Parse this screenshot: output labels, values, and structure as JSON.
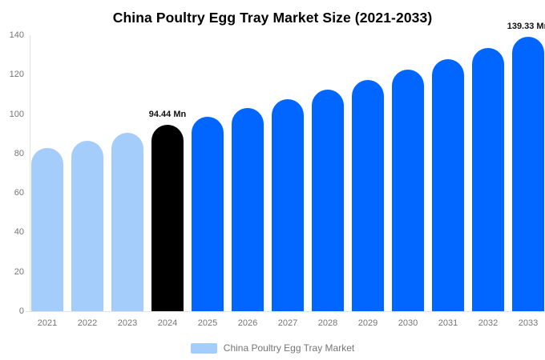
{
  "title": "China Poultry Egg Tray Market Size (2021-2033)",
  "legend": {
    "label": "China Poultry Egg Tray Market",
    "swatch_color": "#a5cdfb"
  },
  "colors": {
    "past_bar": "#a5cdfb",
    "current_bar": "#000000",
    "forecast_bar": "#0066ff",
    "axis_line": "#e3e3e3",
    "tick_text": "#757575",
    "value_text": "#111111"
  },
  "chart_data": {
    "type": "bar",
    "title": "China Poultry Egg Tray Market Size (2021-2033)",
    "xlabel": "",
    "ylabel": "",
    "categories": [
      "2021",
      "2022",
      "2023",
      "2024",
      "2025",
      "2026",
      "2027",
      "2028",
      "2029",
      "2030",
      "2031",
      "2032",
      "2033"
    ],
    "values": [
      82.95,
      86.62,
      90.44,
      94.44,
      98.61,
      102.97,
      107.52,
      112.27,
      117.23,
      122.41,
      127.82,
      133.47,
      139.33
    ],
    "color_roles": [
      "past",
      "past",
      "past",
      "current",
      "forecast",
      "forecast",
      "forecast",
      "forecast",
      "forecast",
      "forecast",
      "forecast",
      "forecast",
      "forecast"
    ],
    "annotations": [
      {
        "index": 3,
        "text": "94.44 Mn"
      },
      {
        "index": 12,
        "text": "139.33 Mn"
      }
    ],
    "ylim": [
      0,
      140
    ],
    "yticks": [
      0,
      20,
      40,
      60,
      80,
      100,
      120,
      140
    ],
    "grid": false,
    "legend_position": "bottom",
    "legend_entries": [
      "China Poultry Egg Tray Market"
    ]
  }
}
